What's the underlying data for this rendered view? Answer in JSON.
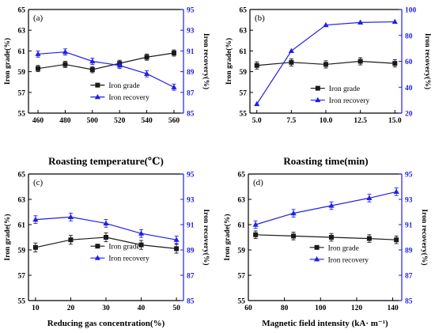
{
  "colors": {
    "grade": "#1a1a1a",
    "recovery": "#1f1fe6",
    "axis_right": "#1f1fe6"
  },
  "chart_data": [
    {
      "type": "line",
      "panel_label": "(a)",
      "xlabel": "Roasting temperature(℃)",
      "ylabel_left": "Iron grade(%)",
      "ylabel_right": "Iron recovery(%)",
      "xlim": [
        453,
        567
      ],
      "ylim_left": [
        55,
        65
      ],
      "ylim_right": [
        85,
        95
      ],
      "x_ticks": [
        "460",
        "480",
        "500",
        "520",
        "540",
        "560"
      ],
      "y_left_ticks": [
        "55",
        "57",
        "59",
        "61",
        "63",
        "65"
      ],
      "y_right_ticks": [
        "85",
        "87",
        "89",
        "91",
        "93",
        "95"
      ],
      "legend_position": "center-right",
      "series": [
        {
          "name": "Iron grade",
          "axis": "left",
          "marker": "square",
          "x": [
            460,
            480,
            500,
            520,
            540,
            560
          ],
          "values": [
            59.3,
            59.7,
            59.2,
            59.8,
            60.4,
            60.8
          ],
          "error": [
            0.3,
            0.3,
            0.3,
            0.3,
            0.3,
            0.3
          ]
        },
        {
          "name": "Iron recovery",
          "axis": "right",
          "marker": "triangle",
          "x": [
            460,
            480,
            500,
            520,
            540,
            560
          ],
          "values": [
            90.7,
            90.9,
            90.0,
            89.6,
            88.8,
            87.5
          ],
          "error": [
            0.3,
            0.3,
            0.3,
            0.3,
            0.3,
            0.3
          ]
        }
      ]
    },
    {
      "type": "line",
      "panel_label": "(b)",
      "xlabel": "Roasting time(min)",
      "ylabel_left": "Iron grade(%)",
      "ylabel_right": "Iron recovery(%)",
      "xlim": [
        4.5,
        15.5
      ],
      "ylim_left": [
        55,
        65
      ],
      "ylim_right": [
        20,
        100
      ],
      "x_ticks": [
        "5.0",
        "7.5",
        "10.0",
        "12.5",
        "15.0"
      ],
      "y_left_ticks": [
        "55",
        "57",
        "59",
        "61",
        "63",
        "65"
      ],
      "y_right_ticks": [
        "20",
        "40",
        "60",
        "80",
        "100"
      ],
      "legend_position": "center-right",
      "series": [
        {
          "name": "Iron grade",
          "axis": "left",
          "marker": "square",
          "x": [
            5.0,
            7.5,
            10.0,
            12.5,
            15.0
          ],
          "values": [
            59.6,
            59.9,
            59.7,
            60.0,
            59.8
          ],
          "error": [
            0.35,
            0.35,
            0.35,
            0.35,
            0.35
          ]
        },
        {
          "name": "Iron recovery",
          "axis": "right",
          "marker": "triangle",
          "x": [
            5.0,
            7.5,
            10.0,
            12.5,
            15.0
          ],
          "values": [
            27,
            68,
            88,
            90,
            90.5
          ],
          "error": [
            0,
            0,
            0,
            0,
            0
          ]
        }
      ]
    },
    {
      "type": "line",
      "panel_label": "(c)",
      "xlabel": "Reducing gas concentration(%)",
      "ylabel_left": "Iron grade(%)",
      "ylabel_right": "Iron recovery(%)",
      "xlim": [
        8,
        52
      ],
      "ylim_left": [
        55,
        65
      ],
      "ylim_right": [
        85,
        95
      ],
      "x_ticks": [
        "10",
        "20",
        "30",
        "40",
        "50"
      ],
      "y_left_ticks": [
        "55",
        "57",
        "59",
        "61",
        "63",
        "65"
      ],
      "y_right_ticks": [
        "85",
        "87",
        "89",
        "91",
        "93",
        "95"
      ],
      "legend_position": "center",
      "series": [
        {
          "name": "Iron grade",
          "axis": "left",
          "marker": "square",
          "x": [
            10,
            20,
            30,
            40,
            50
          ],
          "values": [
            59.2,
            59.8,
            60.0,
            59.4,
            59.1
          ],
          "error": [
            0.35,
            0.35,
            0.35,
            0.35,
            0.35
          ]
        },
        {
          "name": "Iron recovery",
          "axis": "right",
          "marker": "triangle",
          "x": [
            10,
            20,
            30,
            40,
            50
          ],
          "values": [
            91.4,
            91.6,
            91.1,
            90.3,
            89.8
          ],
          "error": [
            0.3,
            0.3,
            0.3,
            0.3,
            0.3
          ]
        }
      ]
    },
    {
      "type": "line",
      "panel_label": "(d)",
      "xlabel": "Magnetic field intensity (kA· m⁻¹)",
      "ylabel_left": "Iron grade(%)",
      "ylabel_right": "Iron recovery(%)",
      "xlim": [
        60,
        145
      ],
      "ylim_left": [
        55,
        65
      ],
      "ylim_right": [
        85,
        95
      ],
      "x_ticks": [
        "60",
        "80",
        "100",
        "120",
        "140"
      ],
      "y_left_ticks": [
        "55",
        "57",
        "59",
        "61",
        "63",
        "65"
      ],
      "y_right_ticks": [
        "85",
        "87",
        "89",
        "91",
        "93",
        "95"
      ],
      "legend_position": "center",
      "series": [
        {
          "name": "Iron grade",
          "axis": "left",
          "marker": "square",
          "x": [
            64,
            85,
            106,
            127,
            142
          ],
          "values": [
            60.2,
            60.1,
            60.0,
            59.9,
            59.8
          ],
          "error": [
            0.3,
            0.3,
            0.3,
            0.3,
            0.3
          ]
        },
        {
          "name": "Iron recovery",
          "axis": "right",
          "marker": "triangle",
          "x": [
            64,
            85,
            106,
            127,
            142
          ],
          "values": [
            91.0,
            91.9,
            92.5,
            93.1,
            93.6
          ],
          "error": [
            0.3,
            0.3,
            0.3,
            0.3,
            0.3
          ]
        }
      ]
    }
  ]
}
